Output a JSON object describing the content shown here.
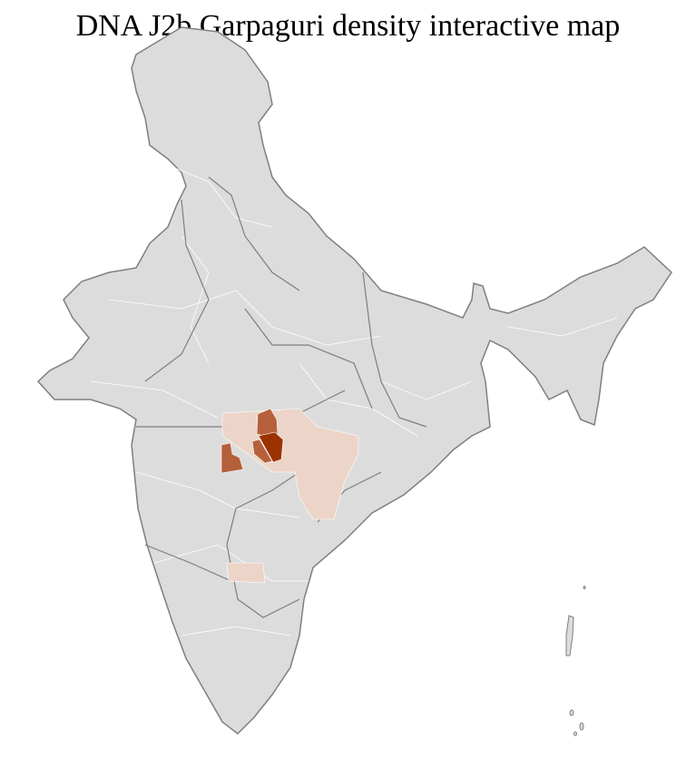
{
  "title": "DNA J2b Garpaguri density interactive map",
  "colors": {
    "base": "#dcdcdc",
    "border": "#7f7f7f",
    "district_border": "#ffffff",
    "low": "#ecd5c8",
    "medium": "#b5603a",
    "high": "#9b3300"
  },
  "density_levels": [
    "low",
    "medium",
    "high"
  ]
}
